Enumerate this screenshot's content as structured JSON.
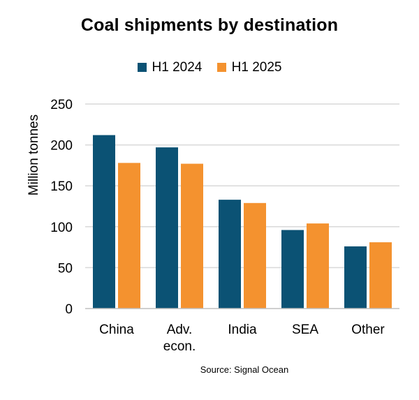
{
  "chart_data": {
    "type": "bar",
    "title": "Coal shipments by destination",
    "ylabel": "Million tonnes",
    "xlabel": "",
    "categories": [
      "China",
      "Adv.\necon.",
      "India",
      "SEA",
      "Other"
    ],
    "series": [
      {
        "name": "H1 2024",
        "color": "#0b5274",
        "values": [
          212,
          197,
          133,
          96,
          76
        ]
      },
      {
        "name": "H1 2025",
        "color": "#f4922f",
        "values": [
          178,
          177,
          129,
          104,
          81
        ]
      }
    ],
    "ylim": [
      0,
      250
    ],
    "yticks": [
      0,
      50,
      100,
      150,
      200,
      250
    ],
    "grid": true,
    "legend_position": "top",
    "source": "Source: Signal Ocean"
  }
}
